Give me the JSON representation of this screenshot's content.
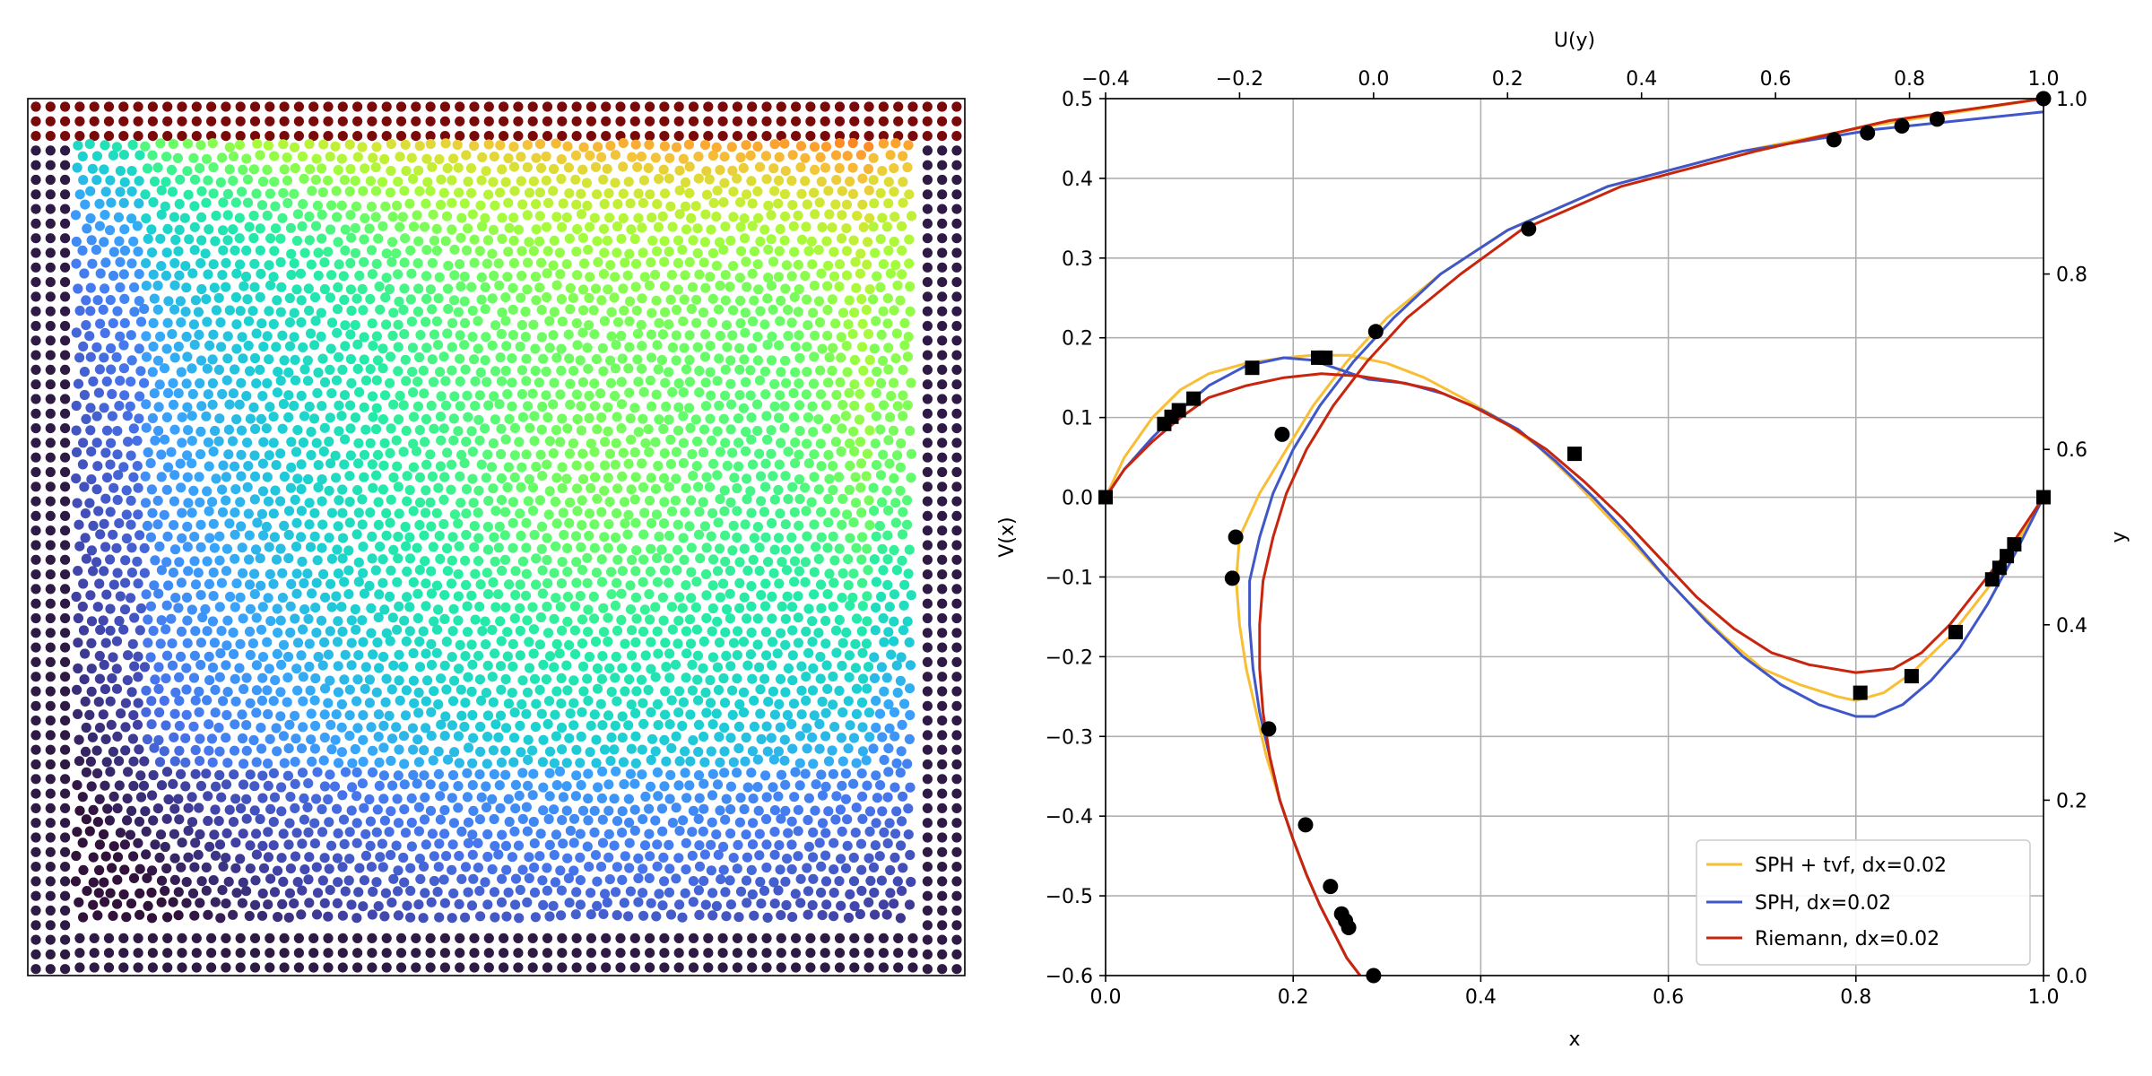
{
  "left_panel": {
    "type": "particle_scatter",
    "boundary_color": "#7a0a0a",
    "wall_color": "#2f1a45",
    "colormap": [
      "#30123b",
      "#4145ab",
      "#4675ed",
      "#39a2fc",
      "#1bcfd4",
      "#24eca6",
      "#61fc6c",
      "#a4fc3b",
      "#d1e834",
      "#f3c63a",
      "#fe9b2d",
      "#f36315",
      "#d93806",
      "#b11901",
      "#7a0403"
    ]
  },
  "chart_data": {
    "type": "line",
    "xlabel": "x",
    "ylabel": "V(x)",
    "x2label": "U(y)",
    "y2label": "y",
    "xlim": [
      0.0,
      1.0
    ],
    "ylim": [
      -0.6,
      0.5
    ],
    "x2lim": [
      -0.4,
      1.0
    ],
    "y2lim": [
      0.0,
      1.0
    ],
    "x_ticks": [
      "0.0",
      "0.2",
      "0.4",
      "0.6",
      "0.8",
      "1.0"
    ],
    "y_ticks": [
      "−0.6",
      "−0.5",
      "−0.4",
      "−0.3",
      "−0.2",
      "−0.1",
      "0.0",
      "0.1",
      "0.2",
      "0.3",
      "0.4",
      "0.5"
    ],
    "x2_ticks": [
      "−0.4",
      "−0.2",
      "0.0",
      "0.2",
      "0.4",
      "0.6",
      "0.8",
      "1.0"
    ],
    "y2_ticks": [
      "0.0",
      "0.2",
      "0.4",
      "0.6",
      "0.8",
      "1.0"
    ],
    "grid": true,
    "legend_position": "lower-right",
    "series": [
      {
        "name": "SPH + tvf, dx=0.02",
        "color": "#f8be34",
        "V_of_x": [
          [
            0.0,
            0.0
          ],
          [
            0.02,
            0.05
          ],
          [
            0.05,
            0.1
          ],
          [
            0.08,
            0.135
          ],
          [
            0.11,
            0.155
          ],
          [
            0.15,
            0.168
          ],
          [
            0.19,
            0.175
          ],
          [
            0.22,
            0.178
          ],
          [
            0.26,
            0.178
          ],
          [
            0.3,
            0.168
          ],
          [
            0.34,
            0.15
          ],
          [
            0.38,
            0.125
          ],
          [
            0.42,
            0.098
          ],
          [
            0.46,
            0.065
          ],
          [
            0.5,
            0.02
          ],
          [
            0.54,
            -0.03
          ],
          [
            0.58,
            -0.08
          ],
          [
            0.62,
            -0.13
          ],
          [
            0.66,
            -0.175
          ],
          [
            0.7,
            -0.215
          ],
          [
            0.74,
            -0.235
          ],
          [
            0.78,
            -0.25
          ],
          [
            0.8,
            -0.255
          ],
          [
            0.83,
            -0.245
          ],
          [
            0.86,
            -0.22
          ],
          [
            0.9,
            -0.175
          ],
          [
            0.94,
            -0.115
          ],
          [
            0.97,
            -0.06
          ],
          [
            1.0,
            0.0
          ]
        ],
        "U_of_y": [
          [
            -0.02,
            0.0
          ],
          [
            -0.04,
            0.02
          ],
          [
            -0.06,
            0.05
          ],
          [
            -0.08,
            0.08
          ],
          [
            -0.1,
            0.115
          ],
          [
            -0.12,
            0.155
          ],
          [
            -0.14,
            0.2
          ],
          [
            -0.16,
            0.25
          ],
          [
            -0.175,
            0.3
          ],
          [
            -0.19,
            0.35
          ],
          [
            -0.2,
            0.4
          ],
          [
            -0.205,
            0.45
          ],
          [
            -0.2,
            0.5
          ],
          [
            -0.17,
            0.55
          ],
          [
            -0.13,
            0.6
          ],
          [
            -0.09,
            0.65
          ],
          [
            -0.04,
            0.7
          ],
          [
            0.02,
            0.75
          ],
          [
            0.1,
            0.8
          ],
          [
            0.2,
            0.85
          ],
          [
            0.35,
            0.9
          ],
          [
            0.55,
            0.94
          ],
          [
            0.75,
            0.97
          ],
          [
            1.0,
            1.0
          ]
        ]
      },
      {
        "name": "SPH, dx=0.02",
        "color": "#3f57c8",
        "V_of_x": [
          [
            0.0,
            0.0
          ],
          [
            0.02,
            0.035
          ],
          [
            0.05,
            0.075
          ],
          [
            0.08,
            0.11
          ],
          [
            0.11,
            0.14
          ],
          [
            0.15,
            0.165
          ],
          [
            0.19,
            0.175
          ],
          [
            0.22,
            0.172
          ],
          [
            0.25,
            0.16
          ],
          [
            0.28,
            0.148
          ],
          [
            0.32,
            0.143
          ],
          [
            0.36,
            0.13
          ],
          [
            0.4,
            0.11
          ],
          [
            0.44,
            0.085
          ],
          [
            0.48,
            0.045
          ],
          [
            0.52,
            -0.0
          ],
          [
            0.56,
            -0.05
          ],
          [
            0.6,
            -0.105
          ],
          [
            0.64,
            -0.155
          ],
          [
            0.68,
            -0.2
          ],
          [
            0.72,
            -0.235
          ],
          [
            0.76,
            -0.26
          ],
          [
            0.8,
            -0.275
          ],
          [
            0.82,
            -0.275
          ],
          [
            0.85,
            -0.26
          ],
          [
            0.88,
            -0.23
          ],
          [
            0.91,
            -0.19
          ],
          [
            0.94,
            -0.135
          ],
          [
            0.97,
            -0.07
          ],
          [
            1.0,
            0.0
          ]
        ],
        "U_of_y": [
          [
            -0.02,
            0.0
          ],
          [
            -0.04,
            0.02
          ],
          [
            -0.06,
            0.05
          ],
          [
            -0.08,
            0.08
          ],
          [
            -0.1,
            0.115
          ],
          [
            -0.12,
            0.155
          ],
          [
            -0.14,
            0.2
          ],
          [
            -0.155,
            0.25
          ],
          [
            -0.17,
            0.3
          ],
          [
            -0.18,
            0.35
          ],
          [
            -0.185,
            0.4
          ],
          [
            -0.185,
            0.45
          ],
          [
            -0.17,
            0.5
          ],
          [
            -0.15,
            0.55
          ],
          [
            -0.12,
            0.6
          ],
          [
            -0.08,
            0.65
          ],
          [
            -0.03,
            0.7
          ],
          [
            0.03,
            0.75
          ],
          [
            0.1,
            0.8
          ],
          [
            0.2,
            0.85
          ],
          [
            0.35,
            0.9
          ],
          [
            0.55,
            0.94
          ],
          [
            0.75,
            0.965
          ],
          [
            1.0,
            0.985
          ]
        ]
      },
      {
        "name": "Riemann, dx=0.02",
        "color": "#c8250e",
        "V_of_x": [
          [
            0.0,
            0.0
          ],
          [
            0.02,
            0.035
          ],
          [
            0.05,
            0.07
          ],
          [
            0.08,
            0.1
          ],
          [
            0.11,
            0.125
          ],
          [
            0.15,
            0.14
          ],
          [
            0.19,
            0.15
          ],
          [
            0.23,
            0.155
          ],
          [
            0.27,
            0.152
          ],
          [
            0.31,
            0.145
          ],
          [
            0.35,
            0.135
          ],
          [
            0.39,
            0.115
          ],
          [
            0.43,
            0.09
          ],
          [
            0.47,
            0.06
          ],
          [
            0.51,
            0.02
          ],
          [
            0.55,
            -0.025
          ],
          [
            0.59,
            -0.075
          ],
          [
            0.63,
            -0.125
          ],
          [
            0.67,
            -0.165
          ],
          [
            0.71,
            -0.195
          ],
          [
            0.75,
            -0.21
          ],
          [
            0.8,
            -0.22
          ],
          [
            0.84,
            -0.215
          ],
          [
            0.87,
            -0.195
          ],
          [
            0.9,
            -0.16
          ],
          [
            0.93,
            -0.115
          ],
          [
            0.96,
            -0.07
          ],
          [
            1.0,
            0.0
          ]
        ],
        "U_of_y": [
          [
            -0.02,
            0.0
          ],
          [
            -0.04,
            0.02
          ],
          [
            -0.06,
            0.05
          ],
          [
            -0.08,
            0.08
          ],
          [
            -0.1,
            0.115
          ],
          [
            -0.12,
            0.155
          ],
          [
            -0.14,
            0.2
          ],
          [
            -0.155,
            0.25
          ],
          [
            -0.165,
            0.3
          ],
          [
            -0.17,
            0.35
          ],
          [
            -0.17,
            0.4
          ],
          [
            -0.165,
            0.45
          ],
          [
            -0.15,
            0.5
          ],
          [
            -0.13,
            0.55
          ],
          [
            -0.1,
            0.6
          ],
          [
            -0.06,
            0.65
          ],
          [
            -0.01,
            0.7
          ],
          [
            0.05,
            0.75
          ],
          [
            0.13,
            0.8
          ],
          [
            0.22,
            0.85
          ],
          [
            0.37,
            0.9
          ],
          [
            0.57,
            0.94
          ],
          [
            0.77,
            0.975
          ],
          [
            1.0,
            1.0
          ]
        ]
      }
    ],
    "reference_V_of_x": [
      [
        0.0,
        0.0
      ],
      [
        0.0625,
        0.0919
      ],
      [
        0.0703,
        0.1009
      ],
      [
        0.0781,
        0.1092
      ],
      [
        0.0938,
        0.1237
      ],
      [
        0.1563,
        0.1623
      ],
      [
        0.2266,
        0.1751
      ],
      [
        0.2344,
        0.1751
      ],
      [
        0.5,
        0.0545
      ],
      [
        0.8047,
        -0.2453
      ],
      [
        0.8594,
        -0.2245
      ],
      [
        0.9063,
        -0.1691
      ],
      [
        0.9453,
        -0.1031
      ],
      [
        0.9531,
        -0.0886
      ],
      [
        0.9609,
        -0.0739
      ],
      [
        0.9688,
        -0.0591
      ],
      [
        1.0,
        0.0
      ]
    ],
    "reference_U_of_y": [
      [
        0.0,
        0.0
      ],
      [
        -0.0372,
        0.0547
      ],
      [
        -0.0419,
        0.0625
      ],
      [
        -0.0477,
        0.0703
      ],
      [
        -0.0643,
        0.1016
      ],
      [
        -0.1015,
        0.1719
      ],
      [
        -0.1566,
        0.2813
      ],
      [
        -0.2109,
        0.4531
      ],
      [
        -0.2058,
        0.5
      ],
      [
        -0.1364,
        0.6172
      ],
      [
        0.0033,
        0.7344
      ],
      [
        0.2315,
        0.8516
      ],
      [
        0.6872,
        0.9531
      ],
      [
        0.7372,
        0.9609
      ],
      [
        0.7887,
        0.9688
      ],
      [
        0.8412,
        0.9766
      ],
      [
        1.0,
        1.0
      ]
    ]
  }
}
